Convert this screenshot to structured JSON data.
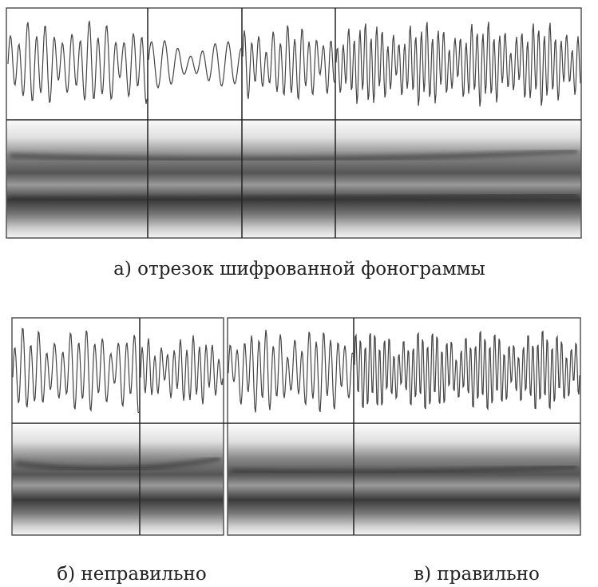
{
  "captions": {
    "a": "а) отрезок шифрованной фонограммы",
    "b": "б) неправильно",
    "c": "в) правильно"
  }
}
